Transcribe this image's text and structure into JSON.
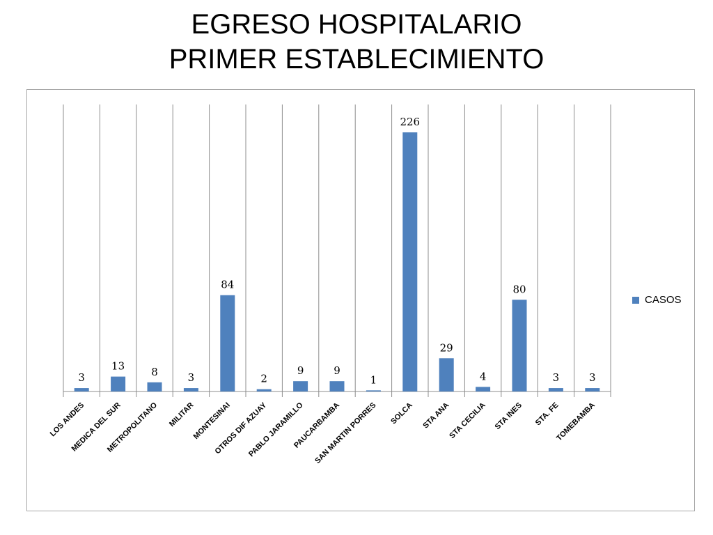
{
  "slide": {
    "title_line1": "EGRESO HOSPITALARIO",
    "title_line2": "PRIMER ESTABLECIMIENTO"
  },
  "chart_data": {
    "type": "bar",
    "categories": [
      "LOS ANDES",
      "MEDICA DEL SUR",
      "METROPOLITANO",
      "MILITAR",
      "MONTESINAI",
      "OTROS DIF AZUAY",
      "PABLO JARAMILLO",
      "PAUCARBAMBA",
      "SAN MARTIN PORRES",
      "SOLCA",
      "STA ANA",
      "STA CECILIA",
      "STA INES",
      "STA. FE",
      "TOMEBAMBA"
    ],
    "series": [
      {
        "name": "CASOS",
        "values": [
          3,
          13,
          8,
          3,
          84,
          2,
          9,
          9,
          1,
          226,
          29,
          4,
          80,
          3,
          3
        ]
      }
    ],
    "ylim": [
      0,
      250
    ],
    "legend_position": "right",
    "gridlines": "vertical",
    "data_labels": true,
    "bar_color": "#4f81bd"
  }
}
